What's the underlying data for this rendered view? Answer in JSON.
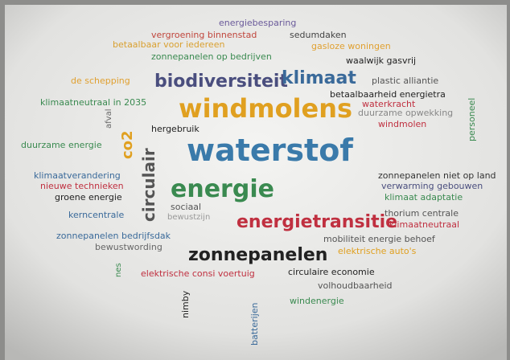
{
  "words": [
    {
      "text": "energiebesparing",
      "color": "#6a5a9a"
    },
    {
      "text": "vergroening binnenstad",
      "color": "#c0463c"
    },
    {
      "text": "sedumdaken",
      "color": "#444444"
    },
    {
      "text": "betaalbaar voor iedereen",
      "color": "#d9a030"
    },
    {
      "text": "gasloze woningen",
      "color": "#e0a030"
    },
    {
      "text": "zonnepanelen op bedrijven",
      "color": "#3a8a50"
    },
    {
      "text": "waalwijk gasvrij",
      "color": "#222222"
    },
    {
      "text": "de schepping",
      "color": "#e0a030"
    },
    {
      "text": "biodiversiteit",
      "color": "#4a4e7e"
    },
    {
      "text": "klimaat",
      "color": "#3a6a9a"
    },
    {
      "text": "plastic alliantie",
      "color": "#555555"
    },
    {
      "text": "betaalbaarheid energietra",
      "color": "#222222"
    },
    {
      "text": "klimaatneutraal in 2035",
      "color": "#3a8a50"
    },
    {
      "text": "windmolens",
      "color": "#e0a020"
    },
    {
      "text": "waterkracht",
      "color": "#c03040"
    },
    {
      "text": "duurzame opwekking",
      "color": "#888888"
    },
    {
      "text": "windmolen",
      "color": "#c03040"
    },
    {
      "text": "personeel",
      "color": "#3a8a50"
    },
    {
      "text": "afval",
      "color": "#666666"
    },
    {
      "text": "co2",
      "color": "#e0a020"
    },
    {
      "text": "hergebruik",
      "color": "#222222"
    },
    {
      "text": "duurzame energie",
      "color": "#3a8a50"
    },
    {
      "text": "waterstof",
      "color": "#3a7aaa"
    },
    {
      "text": "circulair",
      "color": "#555555"
    },
    {
      "text": "klimaatverandering",
      "color": "#3a6a9a"
    },
    {
      "text": "nieuwe technieken",
      "color": "#c03040"
    },
    {
      "text": "groene energie",
      "color": "#222222"
    },
    {
      "text": "energie",
      "color": "#3a8a50"
    },
    {
      "text": "zonnepanelen niet op land",
      "color": "#333333"
    },
    {
      "text": "verwarming gebouwen",
      "color": "#4a4e7e"
    },
    {
      "text": "klimaat adaptatie",
      "color": "#3a8a50"
    },
    {
      "text": "sociaal",
      "color": "#555555"
    },
    {
      "text": "bewustzijn",
      "color": "#999999"
    },
    {
      "text": "kerncentrale",
      "color": "#3a6a9a"
    },
    {
      "text": "energietransitie",
      "color": "#c03040"
    },
    {
      "text": "thorium centrale",
      "color": "#555555"
    },
    {
      "text": "klimaatneutraal",
      "color": "#c03040"
    },
    {
      "text": "zonnepanelen bedrijfsdak",
      "color": "#3a6a9a"
    },
    {
      "text": "mobiliteit energie behoef",
      "color": "#555555"
    },
    {
      "text": "bewustwording",
      "color": "#666666"
    },
    {
      "text": "elektrische auto's",
      "color": "#e0a020"
    },
    {
      "text": "zonnepanelen",
      "color": "#222222"
    },
    {
      "text": "nes",
      "color": "#3a8a50"
    },
    {
      "text": "elektrische consi voertuig",
      "color": "#c03040"
    },
    {
      "text": "circulaire economie",
      "color": "#222222"
    },
    {
      "text": "volhoudbaarheid",
      "color": "#555555"
    },
    {
      "text": "nimby",
      "color": "#222222"
    },
    {
      "text": "windenergie",
      "color": "#3a8a50"
    },
    {
      "text": "batterijen",
      "color": "#3a6a9a"
    }
  ]
}
